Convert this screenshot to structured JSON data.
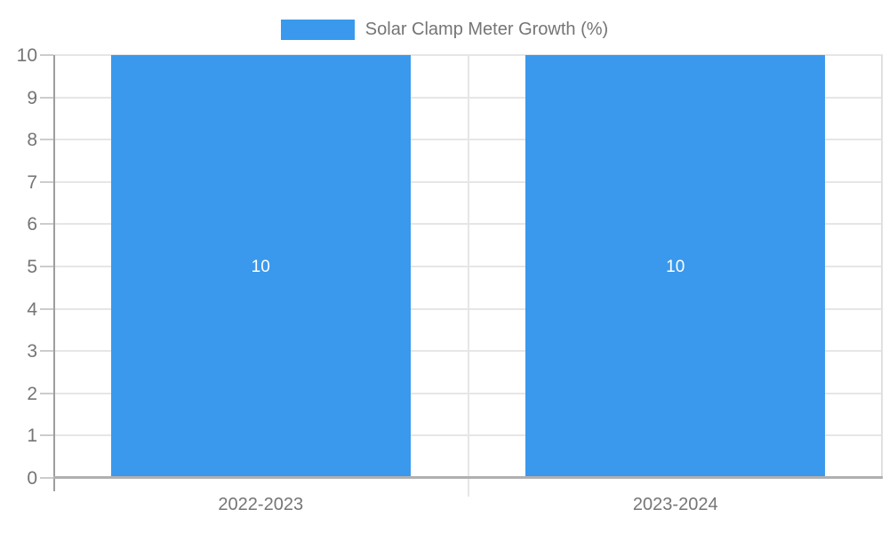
{
  "chart_data": {
    "type": "bar",
    "title": "Solar Clamp Meter Growth (%)",
    "categories": [
      "2022-2023",
      "2023-2024"
    ],
    "values": [
      10,
      10
    ],
    "bar_labels": [
      "10",
      "10"
    ],
    "xlabel": "",
    "ylabel": "",
    "ylim": [
      0,
      10
    ],
    "yticks": [
      0,
      1,
      2,
      3,
      4,
      5,
      6,
      7,
      8,
      9,
      10
    ],
    "legend_position": "top",
    "grid": true,
    "colors": {
      "bar": "#3a99ec",
      "bar_label_text": "#ffffff",
      "axis_text": "#757575",
      "gridline": "#e6e6e6",
      "axis_line": "#9e9e9e",
      "baseline": "#b0b0b0",
      "background": "#ffffff"
    }
  }
}
